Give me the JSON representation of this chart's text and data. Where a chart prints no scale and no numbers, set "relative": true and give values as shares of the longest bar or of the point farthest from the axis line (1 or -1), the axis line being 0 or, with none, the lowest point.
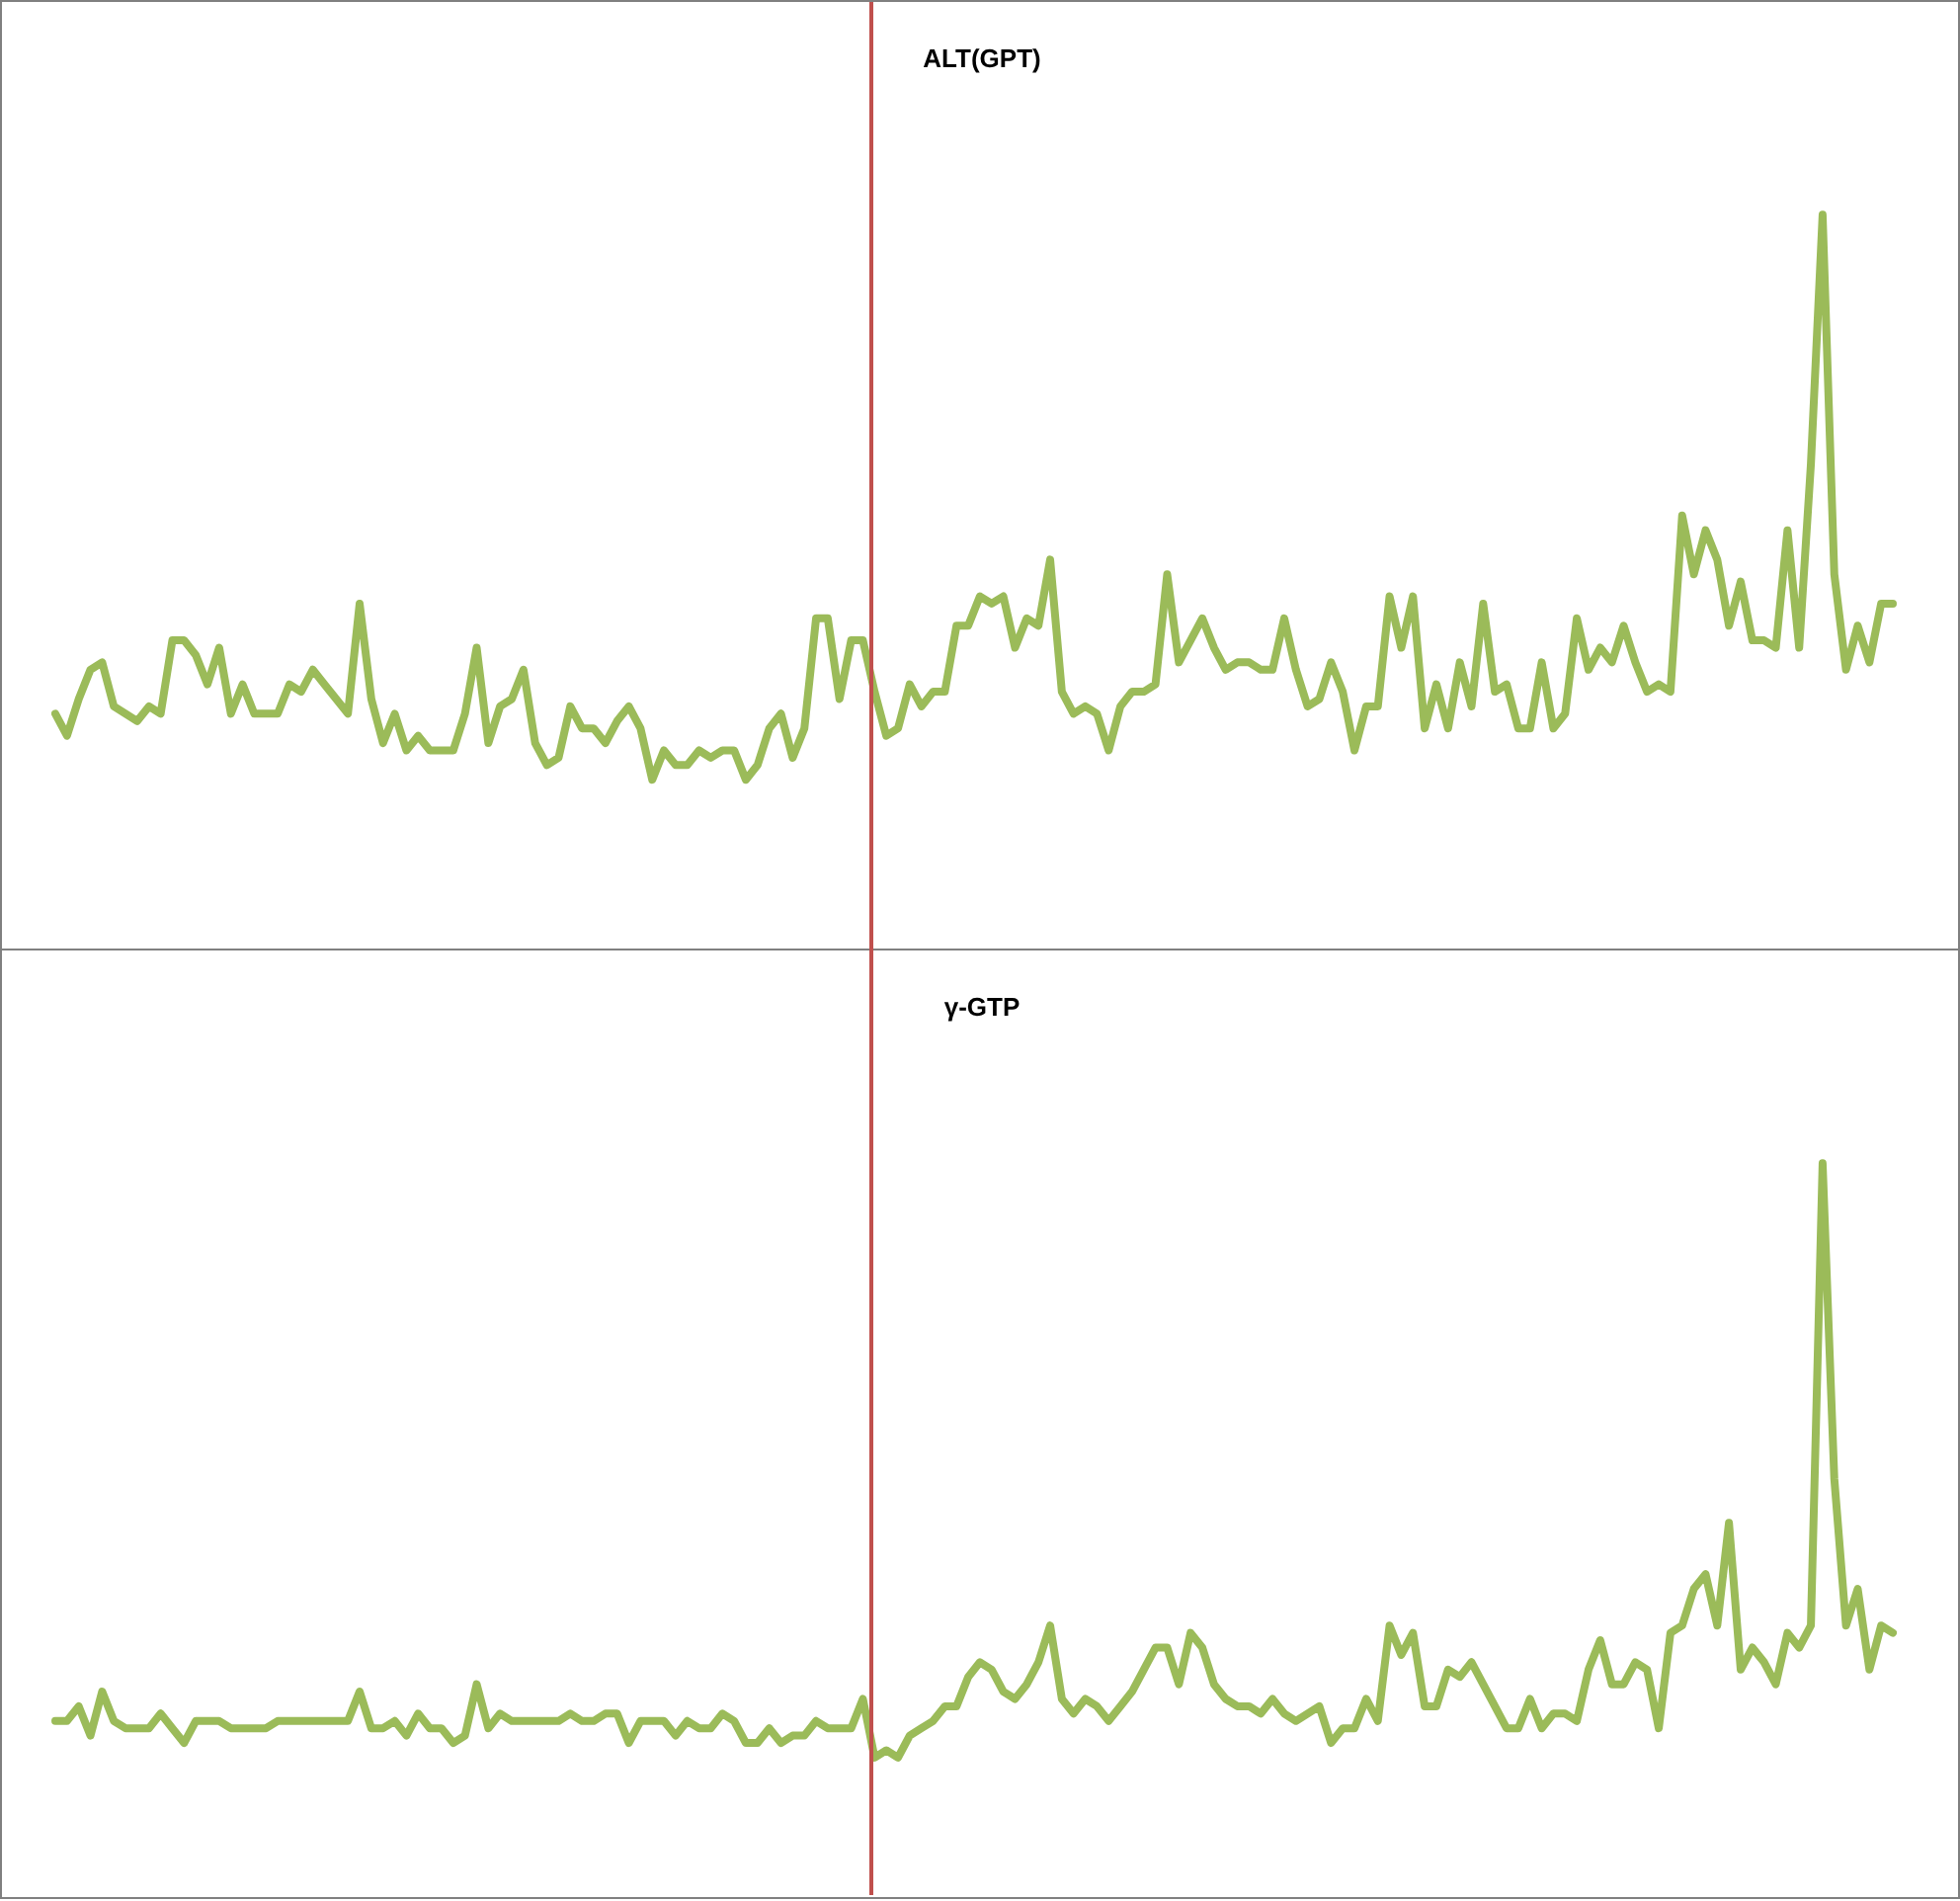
{
  "chart_data": [
    {
      "type": "line",
      "title": "ALT(GPT)",
      "relative": true,
      "categories": [
        null,
        null,
        null,
        null,
        null,
        null,
        null,
        null,
        null,
        null,
        null,
        null,
        null,
        null,
        null,
        null,
        null,
        null,
        null,
        null,
        null,
        null,
        null,
        null,
        null,
        null,
        null,
        null,
        null,
        null,
        null,
        null,
        null,
        null,
        null,
        null,
        null,
        null,
        null,
        null,
        null,
        null,
        null,
        null,
        null,
        null,
        null,
        null,
        null,
        null,
        null,
        null,
        null,
        null,
        null,
        null,
        null,
        null,
        null,
        null,
        null,
        null,
        null,
        null,
        null,
        null,
        null,
        null,
        null,
        null,
        null,
        null,
        null,
        null,
        null,
        null,
        null,
        null,
        null,
        null,
        null,
        null,
        null,
        null,
        null,
        null,
        null,
        null,
        null,
        null,
        null,
        null,
        null,
        null,
        null,
        null,
        null,
        null,
        null,
        null,
        null,
        null,
        null,
        null,
        null,
        null,
        null,
        null,
        null,
        null,
        null,
        null,
        null,
        null,
        null,
        null,
        null,
        null,
        null,
        null,
        null,
        null,
        null,
        null,
        null,
        null,
        null,
        null,
        null,
        null,
        null,
        null,
        null,
        null,
        null,
        null,
        null,
        null,
        null,
        null,
        null,
        null,
        null,
        null,
        null,
        null,
        null,
        null,
        null,
        null,
        null,
        null,
        null,
        null,
        null,
        null,
        null,
        null
      ],
      "series": [
        {
          "color": "#9bbb59",
          "values": [
            0.32,
            0.29,
            0.34,
            0.38,
            0.39,
            0.33,
            0.32,
            0.31,
            0.33,
            0.32,
            0.42,
            0.42,
            0.4,
            0.36,
            0.41,
            0.32,
            0.36,
            0.32,
            0.32,
            0.32,
            0.36,
            0.35,
            0.38,
            0.36,
            0.34,
            0.32,
            0.47,
            0.34,
            0.28,
            0.32,
            0.27,
            0.29,
            0.27,
            0.27,
            0.27,
            0.32,
            0.41,
            0.28,
            0.33,
            0.34,
            0.38,
            0.28,
            0.25,
            0.26,
            0.33,
            0.3,
            0.3,
            0.28,
            0.31,
            0.33,
            0.3,
            0.23,
            0.27,
            0.25,
            0.25,
            0.27,
            0.26,
            0.27,
            0.27,
            0.23,
            0.25,
            0.3,
            0.32,
            0.26,
            0.3,
            0.45,
            0.45,
            0.34,
            0.42,
            0.42,
            0.35,
            0.29,
            0.3,
            0.36,
            0.33,
            0.35,
            0.35,
            0.44,
            0.44,
            0.48,
            0.47,
            0.48,
            0.41,
            0.45,
            0.44,
            0.53,
            0.35,
            0.32,
            0.33,
            0.32,
            0.27,
            0.33,
            0.35,
            0.35,
            0.36,
            0.51,
            0.39,
            0.42,
            0.45,
            0.41,
            0.38,
            0.39,
            0.39,
            0.38,
            0.38,
            0.45,
            0.38,
            0.33,
            0.34,
            0.39,
            0.35,
            0.27,
            0.33,
            0.33,
            0.48,
            0.41,
            0.48,
            0.3,
            0.36,
            0.3,
            0.39,
            0.33,
            0.47,
            0.35,
            0.36,
            0.3,
            0.3,
            0.39,
            0.3,
            0.32,
            0.45,
            0.38,
            0.41,
            0.39,
            0.44,
            0.39,
            0.35,
            0.36,
            0.35,
            0.59,
            0.51,
            0.57,
            0.53,
            0.44,
            0.5,
            0.42,
            0.42,
            0.41,
            0.57,
            0.41,
            0.66,
            1,
            0.51,
            0.38,
            0.44,
            0.39,
            0.47,
            0.47
          ]
        }
      ]
    },
    {
      "type": "line",
      "title": "γ-GTP",
      "relative": true,
      "categories": [
        null,
        null,
        null,
        null,
        null,
        null,
        null,
        null,
        null,
        null,
        null,
        null,
        null,
        null,
        null,
        null,
        null,
        null,
        null,
        null,
        null,
        null,
        null,
        null,
        null,
        null,
        null,
        null,
        null,
        null,
        null,
        null,
        null,
        null,
        null,
        null,
        null,
        null,
        null,
        null,
        null,
        null,
        null,
        null,
        null,
        null,
        null,
        null,
        null,
        null,
        null,
        null,
        null,
        null,
        null,
        null,
        null,
        null,
        null,
        null,
        null,
        null,
        null,
        null,
        null,
        null,
        null,
        null,
        null,
        null,
        null,
        null,
        null,
        null,
        null,
        null,
        null,
        null,
        null,
        null,
        null,
        null,
        null,
        null,
        null,
        null,
        null,
        null,
        null,
        null,
        null,
        null,
        null,
        null,
        null,
        null,
        null,
        null,
        null,
        null,
        null,
        null,
        null,
        null,
        null,
        null,
        null,
        null,
        null,
        null,
        null,
        null,
        null,
        null,
        null,
        null,
        null,
        null,
        null,
        null,
        null,
        null,
        null,
        null,
        null,
        null,
        null,
        null,
        null,
        null,
        null,
        null,
        null,
        null,
        null,
        null,
        null,
        null,
        null,
        null,
        null,
        null,
        null,
        null,
        null,
        null,
        null,
        null,
        null,
        null,
        null,
        null,
        null,
        null,
        null,
        null,
        null,
        null
      ],
      "series": [
        {
          "color": "#9bbb59",
          "values": [
            0.24,
            0.24,
            0.26,
            0.22,
            0.28,
            0.24,
            0.23,
            0.23,
            0.23,
            0.25,
            0.23,
            0.21,
            0.24,
            0.24,
            0.24,
            0.23,
            0.23,
            0.23,
            0.23,
            0.24,
            0.24,
            0.24,
            0.24,
            0.24,
            0.24,
            0.24,
            0.28,
            0.23,
            0.23,
            0.24,
            0.22,
            0.25,
            0.23,
            0.23,
            0.21,
            0.22,
            0.29,
            0.23,
            0.25,
            0.24,
            0.24,
            0.24,
            0.24,
            0.24,
            0.25,
            0.24,
            0.24,
            0.25,
            0.25,
            0.21,
            0.24,
            0.24,
            0.24,
            0.22,
            0.24,
            0.23,
            0.23,
            0.25,
            0.24,
            0.21,
            0.21,
            0.23,
            0.21,
            0.22,
            0.22,
            0.24,
            0.23,
            0.23,
            0.23,
            0.27,
            0.19,
            0.2,
            0.19,
            0.22,
            0.23,
            0.24,
            0.26,
            0.26,
            0.3,
            0.32,
            0.31,
            0.28,
            0.27,
            0.29,
            0.32,
            0.37,
            0.27,
            0.25,
            0.27,
            0.26,
            0.24,
            0.26,
            0.28,
            0.31,
            0.34,
            0.34,
            0.29,
            0.36,
            0.34,
            0.29,
            0.27,
            0.26,
            0.26,
            0.25,
            0.27,
            0.25,
            0.24,
            0.25,
            0.26,
            0.21,
            0.23,
            0.23,
            0.27,
            0.24,
            0.37,
            0.33,
            0.36,
            0.26,
            0.26,
            0.31,
            0.3,
            0.32,
            0.29,
            0.26,
            0.23,
            0.23,
            0.27,
            0.23,
            0.25,
            0.25,
            0.24,
            0.31,
            0.35,
            0.29,
            0.29,
            0.32,
            0.31,
            0.23,
            0.36,
            0.37,
            0.42,
            0.44,
            0.37,
            0.51,
            0.31,
            0.34,
            0.32,
            0.29,
            0.36,
            0.34,
            0.37,
            1,
            0.57,
            0.37,
            0.42,
            0.31,
            0.37,
            0.36
          ]
        }
      ]
    }
  ]
}
